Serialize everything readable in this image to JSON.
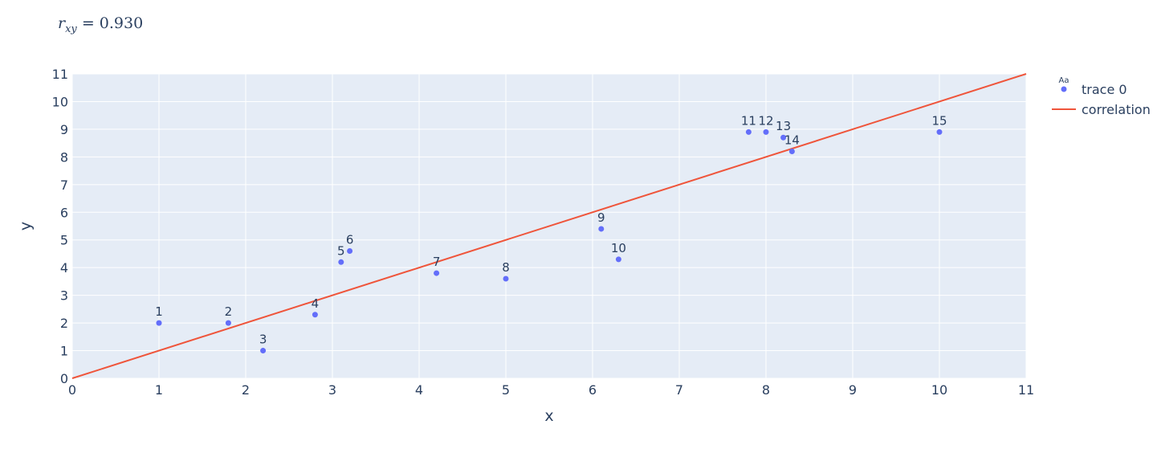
{
  "chart_data": {
    "type": "scatter",
    "title_var": "r",
    "title_sub": "xy",
    "title_value": "= 0.930",
    "xlabel": "x",
    "ylabel": "y",
    "xlim": [
      0,
      11
    ],
    "ylim": [
      0,
      11
    ],
    "xticks": [
      0,
      1,
      2,
      3,
      4,
      5,
      6,
      7,
      8,
      9,
      10,
      11
    ],
    "yticks": [
      0,
      1,
      2,
      3,
      4,
      5,
      6,
      7,
      8,
      9,
      10,
      11
    ],
    "grid": true,
    "legend_position": "top-right",
    "series": [
      {
        "name": "trace 0",
        "mode": "markers+text",
        "color": "#636efa",
        "legend_symbol_text": "Aa",
        "points": [
          {
            "x": 1.0,
            "y": 2.0,
            "label": "1"
          },
          {
            "x": 1.8,
            "y": 2.0,
            "label": "2"
          },
          {
            "x": 2.2,
            "y": 1.0,
            "label": "3"
          },
          {
            "x": 2.8,
            "y": 2.3,
            "label": "4"
          },
          {
            "x": 3.1,
            "y": 4.2,
            "label": "5"
          },
          {
            "x": 3.2,
            "y": 4.6,
            "label": "6"
          },
          {
            "x": 4.2,
            "y": 3.8,
            "label": "7"
          },
          {
            "x": 5.0,
            "y": 3.6,
            "label": "8"
          },
          {
            "x": 6.1,
            "y": 5.4,
            "label": "9"
          },
          {
            "x": 6.3,
            "y": 4.3,
            "label": "10"
          },
          {
            "x": 7.8,
            "y": 8.9,
            "label": "11"
          },
          {
            "x": 8.0,
            "y": 8.9,
            "label": "12"
          },
          {
            "x": 8.2,
            "y": 8.7,
            "label": "13"
          },
          {
            "x": 8.3,
            "y": 8.2,
            "label": "14"
          },
          {
            "x": 10.0,
            "y": 8.9,
            "label": "15"
          }
        ]
      },
      {
        "name": "correlation",
        "mode": "lines",
        "color": "#ef553b",
        "x": [
          0,
          11
        ],
        "y": [
          0,
          11
        ]
      }
    ]
  },
  "colors": {
    "plot_bg": "#e5ecf6",
    "grid": "#ffffff",
    "text": "#2a3f5f"
  }
}
